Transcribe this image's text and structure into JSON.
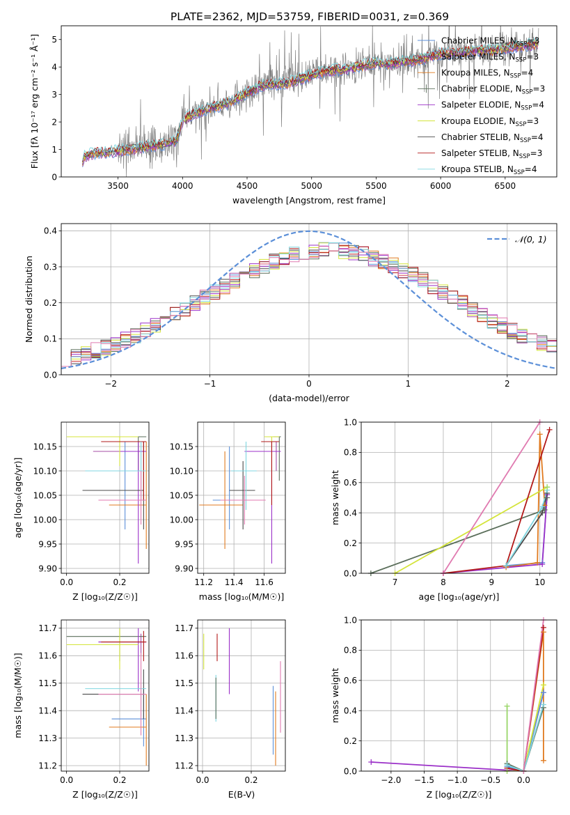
{
  "figure_title": "PLATE=2362, MJD=53759, FIBERID=0031, z=0.369",
  "colors": {
    "Chabrier MILES": "#5b8fd8",
    "Salpeter MILES": "#a64ca6",
    "Kroupa MILES": "#e07a1f",
    "Chabrier ELODIE": "#5a6e5a",
    "Salpeter ELODIE": "#9b30c8",
    "Kroupa ELODIE": "#d4e43a",
    "Chabrier STELIB": "#4a4a4a",
    "Salpeter STELIB": "#b21818",
    "Kroupa STELIB": "#7fd6e0",
    "extra": "#e07ab0",
    "extra2": "#9ad66a",
    "gauss": "#5b8fd8",
    "data": "#808080"
  },
  "chart_data": [
    {
      "id": "spectrum",
      "type": "line",
      "title": "",
      "xlabel": "wavelength [Angstrom, rest frame]",
      "ylabel": "Flux [fλ 10⁻¹⁷ erg cm⁻² s⁻¹ Å⁻¹]",
      "xlim": [
        3060,
        6900
      ],
      "ylim": [
        0,
        5.5
      ],
      "xticks": [
        3500,
        4000,
        4500,
        5000,
        5500,
        6000,
        6500
      ],
      "yticks": [
        0,
        1,
        2,
        3,
        4,
        5
      ],
      "grid": false,
      "legend_position": "top-right",
      "legend": [
        {
          "label": "Chabrier MILES, N",
          "sub": "SSP",
          "suffix": "=3",
          "color_key": "Chabrier MILES"
        },
        {
          "label": "Salpeter MILES, N",
          "sub": "SSP",
          "suffix": "=3",
          "color_key": "Salpeter MILES"
        },
        {
          "label": "Kroupa MILES, N",
          "sub": "SSP",
          "suffix": "=4",
          "color_key": "Kroupa MILES"
        },
        {
          "label": "Chabrier ELODIE, N",
          "sub": "SSP",
          "suffix": "=3",
          "color_key": "Chabrier ELODIE"
        },
        {
          "label": "Salpeter ELODIE, N",
          "sub": "SSP",
          "suffix": "=4",
          "color_key": "Salpeter ELODIE"
        },
        {
          "label": "Kroupa ELODIE, N",
          "sub": "SSP",
          "suffix": "=3",
          "color_key": "Kroupa ELODIE"
        },
        {
          "label": "Chabrier STELIB, N",
          "sub": "SSP",
          "suffix": "=4",
          "color_key": "Chabrier STELIB"
        },
        {
          "label": "Salpeter STELIB, N",
          "sub": "SSP",
          "suffix": "=3",
          "color_key": "Salpeter STELIB"
        },
        {
          "label": "Kroupa STELIB, N",
          "sub": "SSP",
          "suffix": "=4",
          "color_key": "Kroupa STELIB"
        }
      ],
      "model_envelope": {
        "x": [
          3220,
          3240,
          3300,
          3400,
          3500,
          3600,
          3700,
          3800,
          3900,
          3950,
          4000,
          4050,
          4100,
          4200,
          4300,
          4400,
          4500,
          4600,
          4700,
          4800,
          4900,
          5000,
          5100,
          5200,
          5300,
          5400,
          5500,
          5600,
          5700,
          5800,
          5900,
          6000,
          6100,
          6200,
          6300,
          6400,
          6500,
          6600,
          6700,
          6750
        ],
        "y": [
          0.55,
          0.75,
          0.85,
          0.9,
          0.95,
          1.0,
          1.1,
          1.15,
          1.25,
          1.3,
          2.05,
          2.2,
          2.3,
          2.5,
          2.6,
          2.8,
          3.05,
          3.3,
          3.4,
          3.4,
          3.55,
          3.7,
          3.85,
          3.9,
          3.95,
          4.05,
          4.15,
          4.1,
          4.2,
          4.25,
          4.35,
          4.5,
          4.5,
          4.55,
          4.6,
          4.6,
          4.7,
          4.75,
          4.8,
          4.85
        ]
      }
    },
    {
      "id": "residuals",
      "type": "histogram",
      "xlabel": "(data-model)/error",
      "ylabel": "Normed distribution",
      "xlim": [
        -2.5,
        2.5
      ],
      "ylim": [
        0,
        0.42
      ],
      "xticks": [
        -2,
        -1,
        0,
        1,
        2
      ],
      "yticks": [
        0.0,
        0.1,
        0.2,
        0.3,
        0.4
      ],
      "grid": true,
      "legend_position": "top-right",
      "gauss_label": "𝒩(0, 1)",
      "bin_width": 0.1
    },
    {
      "id": "age_vs_Z",
      "type": "errorbar",
      "xlabel": "Z [log₁₀(Z/Z☉)]",
      "ylabel": "age  [log₁₀(age/yr)]",
      "xlim": [
        -0.02,
        0.31
      ],
      "ylim": [
        9.89,
        10.2
      ],
      "xticks": [
        0.0,
        0.2
      ],
      "yticks": [
        9.9,
        9.95,
        10.0,
        10.05,
        10.1,
        10.15
      ],
      "grid": true,
      "points": [
        {
          "c": "Chabrier MILES",
          "x": 0.22,
          "xerr": [
            0.22,
            0.3
          ],
          "y": 10.04,
          "yerr": [
            9.98,
            10.16
          ]
        },
        {
          "c": "Salpeter MILES",
          "x": 0.28,
          "xerr": [
            0.1,
            0.3
          ],
          "y": 10.14,
          "yerr": [
            10.04,
            10.16
          ]
        },
        {
          "c": "Kroupa MILES",
          "x": 0.3,
          "xerr": [
            0.16,
            0.3
          ],
          "y": 10.03,
          "yerr": [
            9.94,
            10.16
          ]
        },
        {
          "c": "Chabrier ELODIE",
          "x": 0.27,
          "xerr": [
            0.0,
            0.3
          ],
          "y": 10.17,
          "yerr": [
            10.1,
            10.17
          ]
        },
        {
          "c": "Salpeter ELODIE",
          "x": 0.27,
          "xerr": [
            0.2,
            0.3
          ],
          "y": 10.14,
          "yerr": [
            9.91,
            10.16
          ]
        },
        {
          "c": "Kroupa ELODIE",
          "x": 0.2,
          "xerr": [
            0.0,
            0.27
          ],
          "y": 10.17,
          "yerr": [
            10.11,
            10.17
          ]
        },
        {
          "c": "Chabrier STELIB",
          "x": 0.29,
          "xerr": [
            0.06,
            0.29
          ],
          "y": 10.06,
          "yerr": [
            9.98,
            10.16
          ]
        },
        {
          "c": "Salpeter STELIB",
          "x": 0.29,
          "xerr": [
            0.13,
            0.3
          ],
          "y": 10.16,
          "yerr": [
            10.04,
            10.16
          ]
        },
        {
          "c": "Kroupa STELIB",
          "x": 0.28,
          "xerr": [
            0.07,
            0.3
          ],
          "y": 10.1,
          "yerr": [
            10.04,
            10.16
          ]
        },
        {
          "c": "extra",
          "x": 0.28,
          "xerr": [
            0.12,
            0.3
          ],
          "y": 10.04,
          "yerr": [
            9.99,
            10.1
          ]
        }
      ]
    },
    {
      "id": "age_vs_mass",
      "type": "errorbar",
      "xlabel": "mass [log₁₀(M/M☉)]",
      "ylabel": "",
      "xlim": [
        11.16,
        11.74
      ],
      "ylim": [
        9.89,
        10.2
      ],
      "xticks": [
        11.2,
        11.4,
        11.6
      ],
      "yticks": [
        9.9,
        9.95,
        10.0,
        10.05,
        10.1,
        10.15
      ],
      "grid": true,
      "points": [
        {
          "c": "Chabrier MILES",
          "x": 11.37,
          "xerr": [
            11.26,
            11.49
          ],
          "y": 10.04,
          "yerr": [
            9.98,
            10.15
          ]
        },
        {
          "c": "Salpeter MILES",
          "x": 11.68,
          "xerr": [
            11.56,
            11.71
          ],
          "y": 10.14,
          "yerr": [
            10.1,
            10.16
          ]
        },
        {
          "c": "Kroupa MILES",
          "x": 11.34,
          "xerr": [
            11.17,
            11.46
          ],
          "y": 10.03,
          "yerr": [
            9.94,
            10.14
          ]
        },
        {
          "c": "Chabrier ELODIE",
          "x": 11.7,
          "xerr": [
            11.66,
            11.71
          ],
          "y": 10.17,
          "yerr": [
            10.08,
            10.17
          ]
        },
        {
          "c": "Salpeter ELODIE",
          "x": 11.65,
          "xerr": [
            11.47,
            11.71
          ],
          "y": 10.14,
          "yerr": [
            9.91,
            10.16
          ]
        },
        {
          "c": "Kroupa ELODIE",
          "x": 11.65,
          "xerr": [
            11.6,
            11.7
          ],
          "y": 10.17,
          "yerr": [
            10.1,
            10.17
          ]
        },
        {
          "c": "Chabrier STELIB",
          "x": 11.46,
          "xerr": [
            11.37,
            11.54
          ],
          "y": 10.06,
          "yerr": [
            9.98,
            10.12
          ]
        },
        {
          "c": "Salpeter STELIB",
          "x": 11.65,
          "xerr": [
            11.58,
            11.7
          ],
          "y": 10.16,
          "yerr": [
            10.03,
            10.16
          ]
        },
        {
          "c": "Kroupa STELIB",
          "x": 11.48,
          "xerr": [
            11.38,
            11.55
          ],
          "y": 10.1,
          "yerr": [
            10.02,
            10.16
          ]
        },
        {
          "c": "extra",
          "x": 11.47,
          "xerr": [
            11.31,
            11.61
          ],
          "y": 10.04,
          "yerr": [
            9.99,
            10.09
          ]
        }
      ]
    },
    {
      "id": "weight_vs_age",
      "type": "line",
      "xlabel": "age  [log₁₀(age/yr)]",
      "ylabel": "mass weight",
      "xlim": [
        6.3,
        10.35
      ],
      "ylim": [
        0,
        1.0
      ],
      "xticks": [
        7,
        8,
        9,
        10
      ],
      "yticks": [
        0.0,
        0.2,
        0.4,
        0.6,
        0.8,
        1.0
      ],
      "grid": true,
      "series": [
        {
          "c": "Chabrier MILES",
          "x": [
            9.3,
            10.05,
            10.15
          ],
          "y": [
            0.05,
            0.07,
            0.52
          ]
        },
        {
          "c": "Kroupa MILES",
          "x": [
            9.3,
            9.95,
            10.0,
            10.1
          ],
          "y": [
            0.04,
            0.07,
            0.92,
            0.45
          ]
        },
        {
          "c": "Chabrier ELODIE",
          "x": [
            6.5,
            10.1,
            10.15
          ],
          "y": [
            0.0,
            0.42,
            0.5
          ]
        },
        {
          "c": "Salpeter ELODIE",
          "x": [
            8.0,
            10.05,
            10.15
          ],
          "y": [
            0.0,
            0.06,
            0.52
          ]
        },
        {
          "c": "Kroupa ELODIE",
          "x": [
            7.0,
            10.15
          ],
          "y": [
            0.0,
            0.57
          ]
        },
        {
          "c": "Chabrier STELIB",
          "x": [
            9.3,
            10.05,
            10.15
          ],
          "y": [
            0.05,
            0.4,
            0.53
          ]
        },
        {
          "c": "Salpeter STELIB",
          "x": [
            8.0,
            9.3,
            10.2
          ],
          "y": [
            0.0,
            0.05,
            0.95
          ]
        },
        {
          "c": "Kroupa STELIB",
          "x": [
            9.3,
            10.05,
            10.15
          ],
          "y": [
            0.05,
            0.44,
            0.55
          ]
        },
        {
          "c": "extra",
          "x": [
            8.0,
            10.0
          ],
          "y": [
            0.0,
            1.0
          ]
        },
        {
          "c": "extra2",
          "x": [
            10.15
          ],
          "y": [
            0.57
          ]
        }
      ]
    },
    {
      "id": "mass_vs_Z",
      "type": "errorbar",
      "xlabel": "Z [log₁₀(Z/Z☉)]",
      "ylabel": "mass [log₁₀(M/M☉)]",
      "xlim": [
        -0.02,
        0.31
      ],
      "ylim": [
        11.18,
        11.73
      ],
      "xticks": [
        0.0,
        0.2
      ],
      "yticks": [
        11.2,
        11.3,
        11.4,
        11.5,
        11.6,
        11.7
      ],
      "grid": true,
      "points": [
        {
          "c": "Chabrier MILES",
          "x": 0.29,
          "xerr": [
            0.17,
            0.3
          ],
          "y": 11.37,
          "yerr": [
            11.27,
            11.48
          ]
        },
        {
          "c": "Salpeter MILES",
          "x": 0.28,
          "xerr": [
            0.12,
            0.3
          ],
          "y": 11.65,
          "yerr": [
            11.6,
            11.68
          ]
        },
        {
          "c": "Kroupa MILES",
          "x": 0.3,
          "xerr": [
            0.16,
            0.3
          ],
          "y": 11.34,
          "yerr": [
            11.2,
            11.46
          ]
        },
        {
          "c": "Chabrier ELODIE",
          "x": 0.2,
          "xerr": [
            0.0,
            0.3
          ],
          "y": 11.67,
          "yerr": [
            11.58,
            11.7
          ]
        },
        {
          "c": "Salpeter ELODIE",
          "x": 0.27,
          "xerr": [
            0.12,
            0.3
          ],
          "y": 11.65,
          "yerr": [
            11.47,
            11.7
          ]
        },
        {
          "c": "Kroupa ELODIE",
          "x": 0.2,
          "xerr": [
            0.0,
            0.27
          ],
          "y": 11.64,
          "yerr": [
            11.55,
            11.7
          ]
        },
        {
          "c": "Chabrier STELIB",
          "x": 0.29,
          "xerr": [
            0.06,
            0.29
          ],
          "y": 11.46,
          "yerr": [
            11.37,
            11.55
          ]
        },
        {
          "c": "Salpeter STELIB",
          "x": 0.29,
          "xerr": [
            0.13,
            0.3
          ],
          "y": 11.65,
          "yerr": [
            11.58,
            11.69
          ]
        },
        {
          "c": "Kroupa STELIB",
          "x": 0.28,
          "xerr": [
            0.07,
            0.3
          ],
          "y": 11.48,
          "yerr": [
            11.38,
            11.55
          ]
        },
        {
          "c": "extra",
          "x": 0.28,
          "xerr": [
            0.12,
            0.3
          ],
          "y": 11.46,
          "yerr": [
            11.31,
            11.61
          ]
        }
      ]
    },
    {
      "id": "mass_vs_ebv",
      "type": "errorbar",
      "xlabel": "E(B-V)",
      "ylabel": "",
      "xlim": [
        -0.02,
        0.34
      ],
      "ylim": [
        11.18,
        11.73
      ],
      "xticks": [
        0.0,
        0.2
      ],
      "yticks": [
        11.2,
        11.3,
        11.4,
        11.5,
        11.6,
        11.7
      ],
      "grid": true,
      "points": [
        {
          "c": "Chabrier MILES",
          "x": 0.29,
          "yerr": [
            11.24,
            11.49
          ]
        },
        {
          "c": "Kroupa MILES",
          "x": 0.3,
          "yerr": [
            11.2,
            11.47
          ]
        },
        {
          "c": "Kroupa ELODIE",
          "x": 0.005,
          "yerr": [
            11.55,
            11.68
          ]
        },
        {
          "c": "Salpeter STELIB",
          "x": 0.06,
          "yerr": [
            11.58,
            11.68
          ]
        },
        {
          "c": "Kroupa STELIB",
          "x": 0.055,
          "yerr": [
            11.36,
            11.53
          ]
        },
        {
          "c": "Chabrier ELODIE",
          "x": 0.055,
          "yerr": [
            11.37,
            11.52
          ]
        },
        {
          "c": "Salpeter ELODIE",
          "x": 0.11,
          "yerr": [
            11.46,
            11.7
          ]
        },
        {
          "c": "extra",
          "x": 0.32,
          "yerr": [
            11.32,
            11.58
          ]
        }
      ]
    },
    {
      "id": "weight_vs_Z",
      "type": "line",
      "xlabel": "Z [log₁₀(Z/Z☉)]",
      "ylabel": "mass weight",
      "xlim": [
        -2.45,
        0.5
      ],
      "ylim": [
        0,
        1.0
      ],
      "xticks": [
        -2.0,
        -1.5,
        -1.0,
        -0.5,
        0.0
      ],
      "yticks": [
        0.0,
        0.2,
        0.4,
        0.6,
        0.8,
        1.0
      ],
      "grid": true,
      "series": [
        {
          "c": "Salpeter ELODIE",
          "x": [
            -2.3,
            0.0,
            0.3
          ],
          "y": [
            0.06,
            0.0,
            0.52
          ]
        },
        {
          "c": "Kroupa MILES",
          "x": [
            -0.25,
            0.0,
            0.3,
            0.3
          ],
          "y": [
            0.02,
            0.0,
            0.92,
            0.07
          ]
        },
        {
          "c": "Chabrier MILES",
          "x": [
            -0.25,
            0.0,
            0.3
          ],
          "y": [
            0.03,
            0.0,
            0.52
          ]
        },
        {
          "c": "Chabrier ELODIE",
          "x": [
            -0.25,
            0.0,
            0.3
          ],
          "y": [
            0.05,
            0.0,
            0.42
          ]
        },
        {
          "c": "Kroupa ELODIE",
          "x": [
            -0.25,
            0.0,
            0.3
          ],
          "y": [
            0.0,
            0.0,
            0.57
          ]
        },
        {
          "c": "Salpeter STELIB",
          "x": [
            -0.25,
            0.0,
            0.3
          ],
          "y": [
            0.02,
            0.0,
            0.95
          ]
        },
        {
          "c": "Kroupa STELIB",
          "x": [
            -0.25,
            0.0,
            0.3
          ],
          "y": [
            0.04,
            0.0,
            0.44
          ]
        },
        {
          "c": "extra",
          "x": [
            0.0,
            0.3
          ],
          "y": [
            0.0,
            1.0
          ]
        },
        {
          "c": "extra2",
          "x": [
            -0.25,
            -0.25
          ],
          "y": [
            0.0,
            0.43
          ]
        }
      ]
    }
  ]
}
